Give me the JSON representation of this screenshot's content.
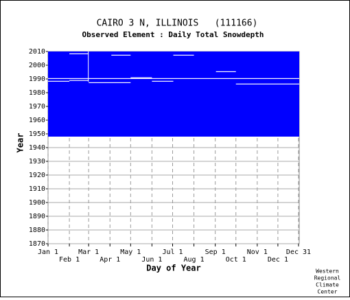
{
  "chart_data": {
    "type": "coverage",
    "title": "CAIRO 3 N, ILLINOIS   (111166)",
    "subtitle": "Observed Element : Daily Total Snowdepth",
    "x_label": "Day of Year",
    "y_label": "Year",
    "credit": [
      "Western",
      "Regional",
      "Climate",
      "Center"
    ],
    "xlim": [
      1,
      366
    ],
    "ylim": [
      1870,
      2010
    ],
    "xticks": [
      {
        "value": 1,
        "label": "Jan 1"
      },
      {
        "value": 32,
        "label": "Feb 1"
      },
      {
        "value": 60,
        "label": "Mar 1"
      },
      {
        "value": 91,
        "label": "Apr 1"
      },
      {
        "value": 121,
        "label": "May 1"
      },
      {
        "value": 152,
        "label": "Jun 1"
      },
      {
        "value": 182,
        "label": "Jul 1"
      },
      {
        "value": 213,
        "label": "Aug 1"
      },
      {
        "value": 244,
        "label": "Sep 1"
      },
      {
        "value": 274,
        "label": "Oct 1"
      },
      {
        "value": 305,
        "label": "Nov 1"
      },
      {
        "value": 335,
        "label": "Dec 1"
      },
      {
        "value": 365,
        "label": "Dec 31"
      }
    ],
    "yticks": [
      1870,
      1880,
      1890,
      1900,
      1910,
      1920,
      1930,
      1940,
      1950,
      1960,
      1970,
      1980,
      1990,
      2000,
      2010
    ],
    "grid": true,
    "blocks": [
      {
        "x": [
          1,
          366
        ],
        "y": [
          1948,
          2010
        ],
        "color": "#0000ff"
      },
      {
        "x": [
          1,
          366
        ],
        "y": [
          1990,
          1990.6
        ],
        "color": "#ffffff"
      },
      {
        "x": [
          1,
          32
        ],
        "y": [
          1988,
          1988.6
        ],
        "color": "#ffffff"
      },
      {
        "x": [
          32,
          60
        ],
        "y": [
          1988.6,
          1989.2
        ],
        "color": "#ffffff"
      },
      {
        "x": [
          60,
          121
        ],
        "y": [
          1987,
          1987.6
        ],
        "color": "#ffffff"
      },
      {
        "x": [
          121,
          152
        ],
        "y": [
          1990.6,
          1991.2
        ],
        "color": "#ffffff"
      },
      {
        "x": [
          152,
          183
        ],
        "y": [
          1988,
          1988.6
        ],
        "color": "#ffffff"
      },
      {
        "x": [
          274,
          366
        ],
        "y": [
          1986,
          1986.6
        ],
        "color": "#ffffff"
      },
      {
        "x": [
          93,
          121
        ],
        "y": [
          2007,
          2007.6
        ],
        "color": "#ffffff"
      },
      {
        "x": [
          183,
          213
        ],
        "y": [
          2007,
          2007.6
        ],
        "color": "#ffffff"
      },
      {
        "x": [
          245,
          274
        ],
        "y": [
          1995,
          1995.6
        ],
        "color": "#ffffff"
      },
      {
        "x": [
          32,
          60
        ],
        "y": [
          2008,
          2008.6
        ],
        "color": "#ffffff"
      },
      {
        "x": [
          59,
          60
        ],
        "y": [
          1988,
          2010
        ],
        "color": "#ffffff"
      }
    ]
  }
}
